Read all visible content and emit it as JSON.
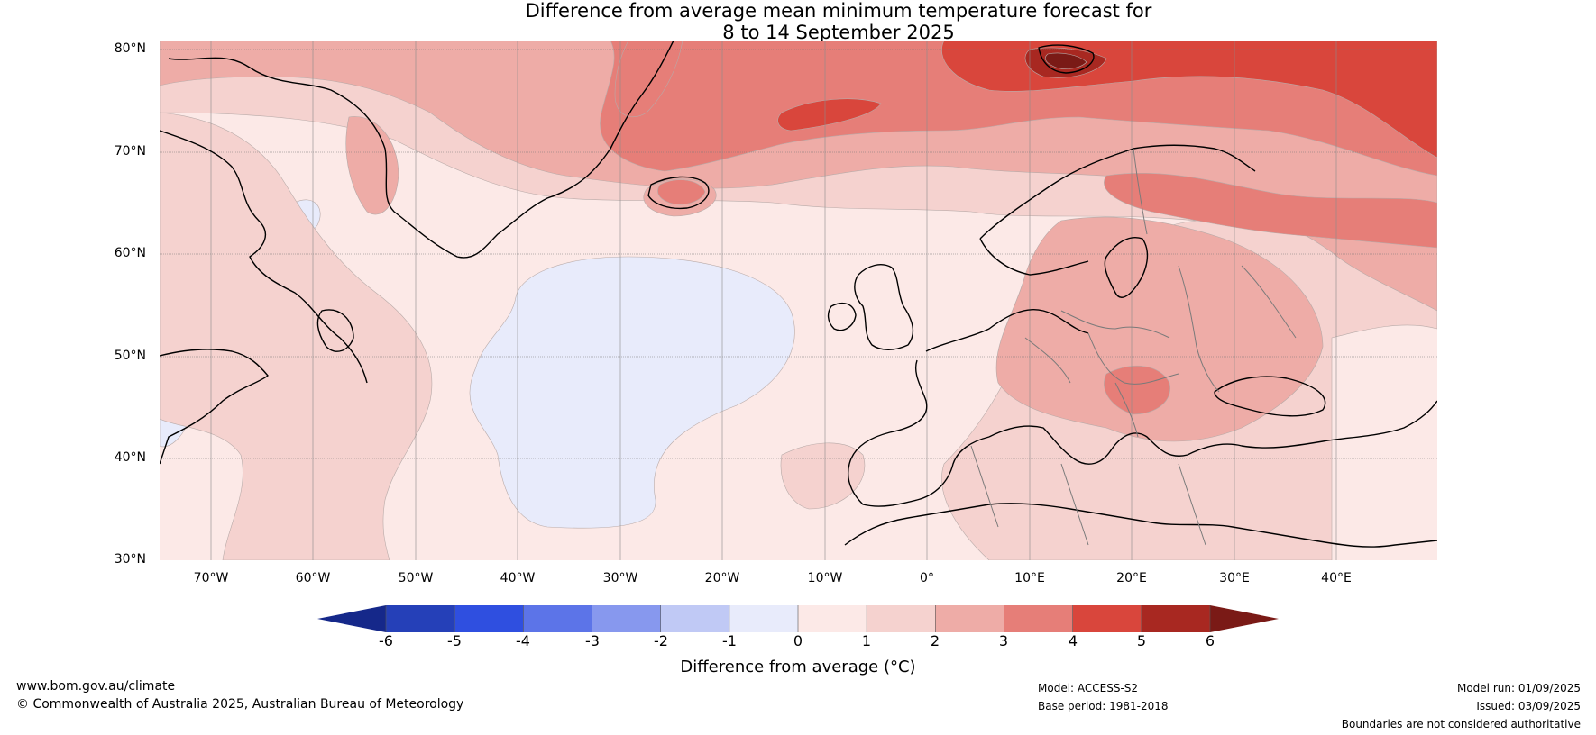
{
  "title": {
    "line1": "Difference from average mean minimum temperature forecast for",
    "line2": "8 to 14 September 2025"
  },
  "map": {
    "latitude_labels": [
      "80°N",
      "70°N",
      "60°N",
      "50°N",
      "40°N",
      "30°N"
    ],
    "longitude_labels": [
      "70°W",
      "60°W",
      "50°W",
      "40°W",
      "30°W",
      "20°W",
      "10°W",
      "0°",
      "10°E",
      "20°E",
      "30°E",
      "40°E"
    ]
  },
  "colorbar": {
    "ticks": [
      "-6",
      "-5",
      "-4",
      "-3",
      "-2",
      "-1",
      "0",
      "1",
      "2",
      "3",
      "4",
      "5",
      "6"
    ],
    "colors": [
      "#15288a",
      "#2540b8",
      "#2f4fe0",
      "#5c74e8",
      "#8798ee",
      "#c0c9f5",
      "#e8ebfb",
      "#fce9e7",
      "#f5d2cf",
      "#eeaca7",
      "#e67e78",
      "#d9463c",
      "#a82821",
      "#7a1a16"
    ],
    "label": "Difference from average (°C)"
  },
  "footer": {
    "website": "www.bom.gov.au/climate",
    "copyright": "© Commonwealth of Australia 2025, Australian Bureau of Meteorology",
    "model": "Model: ACCESS-S2",
    "base_period": "Base period: 1981-2018",
    "model_run": "Model run: 01/09/2025",
    "issued": "Issued: 03/09/2025",
    "disclaimer": "Boundaries are not considered authoritative"
  }
}
